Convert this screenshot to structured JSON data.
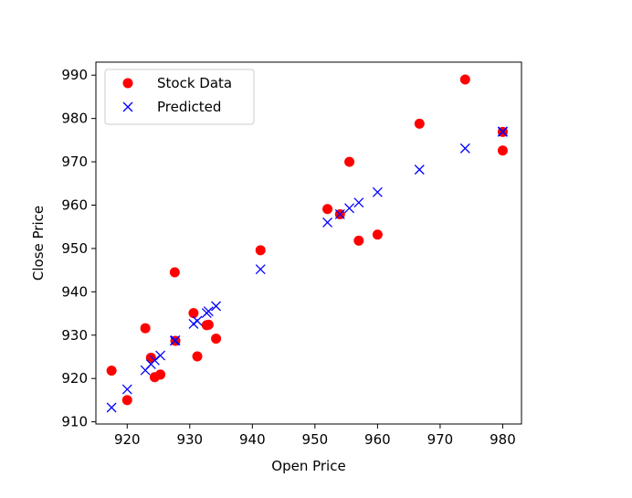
{
  "chart_data": {
    "type": "scatter",
    "title": "",
    "xlabel": "Open Price",
    "ylabel": "Close Price",
    "xlim": [
      915,
      983
    ],
    "ylim": [
      909.5,
      993
    ],
    "xticks": [
      920,
      930,
      940,
      950,
      960,
      970,
      980
    ],
    "yticks": [
      910,
      920,
      930,
      940,
      950,
      960,
      970,
      980,
      990
    ],
    "grid": false,
    "legend_position": "upper left",
    "series": [
      {
        "name": "Stock Data",
        "marker": "circle",
        "color": "#ff0000",
        "points": [
          {
            "x": 917.5,
            "y": 921.8
          },
          {
            "x": 920.0,
            "y": 915.0
          },
          {
            "x": 922.9,
            "y": 931.6
          },
          {
            "x": 923.8,
            "y": 924.8
          },
          {
            "x": 924.4,
            "y": 920.3
          },
          {
            "x": 925.3,
            "y": 920.9
          },
          {
            "x": 927.6,
            "y": 944.5
          },
          {
            "x": 927.7,
            "y": 928.7
          },
          {
            "x": 930.6,
            "y": 935.1
          },
          {
            "x": 931.2,
            "y": 925.1
          },
          {
            "x": 932.7,
            "y": 932.3
          },
          {
            "x": 933.0,
            "y": 932.4
          },
          {
            "x": 934.2,
            "y": 929.2
          },
          {
            "x": 941.3,
            "y": 949.6
          },
          {
            "x": 952.0,
            "y": 959.1
          },
          {
            "x": 954.0,
            "y": 957.9
          },
          {
            "x": 955.5,
            "y": 970.0
          },
          {
            "x": 957.0,
            "y": 951.8
          },
          {
            "x": 960.0,
            "y": 953.2
          },
          {
            "x": 966.7,
            "y": 978.8
          },
          {
            "x": 974.0,
            "y": 989.0
          },
          {
            "x": 980.0,
            "y": 976.9
          },
          {
            "x": 980.0,
            "y": 972.6
          }
        ]
      },
      {
        "name": "Predicted",
        "marker": "x",
        "color": "#0000ff",
        "points": [
          {
            "x": 917.5,
            "y": 913.3
          },
          {
            "x": 920.0,
            "y": 917.5
          },
          {
            "x": 922.9,
            "y": 921.9
          },
          {
            "x": 923.8,
            "y": 923.3
          },
          {
            "x": 924.4,
            "y": 924.2
          },
          {
            "x": 925.3,
            "y": 925.3
          },
          {
            "x": 927.6,
            "y": 928.7
          },
          {
            "x": 927.7,
            "y": 928.8
          },
          {
            "x": 930.6,
            "y": 932.6
          },
          {
            "x": 931.2,
            "y": 933.3
          },
          {
            "x": 932.7,
            "y": 935.1
          },
          {
            "x": 933.0,
            "y": 935.5
          },
          {
            "x": 934.2,
            "y": 936.7
          },
          {
            "x": 941.3,
            "y": 945.2
          },
          {
            "x": 952.0,
            "y": 956.0
          },
          {
            "x": 954.0,
            "y": 957.9
          },
          {
            "x": 955.5,
            "y": 959.3
          },
          {
            "x": 957.0,
            "y": 960.6
          },
          {
            "x": 960.0,
            "y": 963.0
          },
          {
            "x": 966.7,
            "y": 968.2
          },
          {
            "x": 974.0,
            "y": 973.1
          },
          {
            "x": 980.0,
            "y": 976.9
          },
          {
            "x": 980.0,
            "y": 977.0
          }
        ]
      }
    ]
  }
}
